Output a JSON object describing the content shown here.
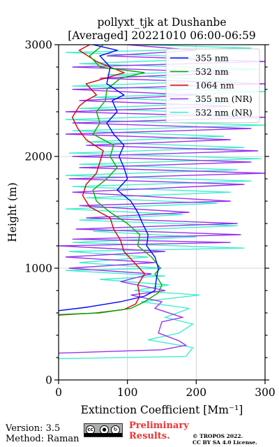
{
  "title_line1": "pollyxt_tjk at Dushanbe",
  "title_line2": "[Averaged] 20221010 06:00-06:59",
  "footer": {
    "version": "Version: 3.5",
    "method": "Method: Raman",
    "prelim_line1": "Preliminary",
    "prelim_line2": "Results.",
    "copyright_line1": "© TROPOS 2022.",
    "copyright_line2": "CC BY SA 4.0 License.",
    "cc_badge_text": "cc"
  },
  "chart_data": {
    "type": "line",
    "xlabel": "Extinction Coefficient [Mm⁻¹]",
    "ylabel": "Height (m)",
    "xlim": [
      0,
      300
    ],
    "ylim": [
      0,
      3000
    ],
    "xticks": [
      0,
      100,
      200,
      300
    ],
    "yticks": [
      0,
      1000,
      2000,
      3000
    ],
    "grid": true,
    "legend_position": "top-right",
    "series": [
      {
        "name": "355 nm",
        "color": "#0000ff",
        "points": [
          [
            0,
            620
          ],
          [
            40,
            650
          ],
          [
            90,
            700
          ],
          [
            125,
            750
          ],
          [
            140,
            800
          ],
          [
            142,
            900
          ],
          [
            145,
            1000
          ],
          [
            140,
            1100
          ],
          [
            128,
            1200
          ],
          [
            130,
            1300
          ],
          [
            122,
            1400
          ],
          [
            115,
            1500
          ],
          [
            105,
            1600
          ],
          [
            85,
            1700
          ],
          [
            100,
            1800
          ],
          [
            95,
            1900
          ],
          [
            88,
            2000
          ],
          [
            95,
            2100
          ],
          [
            80,
            2200
          ],
          [
            70,
            2300
          ],
          [
            85,
            2400
          ],
          [
            78,
            2500
          ],
          [
            95,
            2550
          ],
          [
            70,
            2650
          ],
          [
            75,
            2800
          ],
          [
            60,
            2900
          ],
          [
            85,
            2950
          ],
          [
            50,
            3000
          ]
        ]
      },
      {
        "name": "532 nm",
        "color": "#00aa00",
        "points": [
          [
            0,
            585
          ],
          [
            60,
            600
          ],
          [
            105,
            640
          ],
          [
            125,
            700
          ],
          [
            145,
            780
          ],
          [
            150,
            850
          ],
          [
            140,
            950
          ],
          [
            148,
            1000
          ],
          [
            135,
            1100
          ],
          [
            115,
            1200
          ],
          [
            118,
            1300
          ],
          [
            100,
            1400
          ],
          [
            75,
            1500
          ],
          [
            55,
            1600
          ],
          [
            50,
            1700
          ],
          [
            70,
            1800
          ],
          [
            85,
            1900
          ],
          [
            75,
            2000
          ],
          [
            80,
            2100
          ],
          [
            50,
            2200
          ],
          [
            60,
            2300
          ],
          [
            55,
            2400
          ],
          [
            68,
            2500
          ],
          [
            70,
            2600
          ],
          [
            90,
            2700
          ],
          [
            125,
            2750
          ],
          [
            60,
            2800
          ],
          [
            45,
            2900
          ],
          [
            65,
            3000
          ]
        ]
      },
      {
        "name": "1064 nm",
        "color": "#dd0000",
        "points": [
          [
            0,
            580
          ],
          [
            55,
            600
          ],
          [
            95,
            630
          ],
          [
            112,
            680
          ],
          [
            118,
            750
          ],
          [
            115,
            850
          ],
          [
            125,
            950
          ],
          [
            110,
            1050
          ],
          [
            95,
            1150
          ],
          [
            90,
            1250
          ],
          [
            80,
            1350
          ],
          [
            75,
            1450
          ],
          [
            45,
            1550
          ],
          [
            35,
            1650
          ],
          [
            40,
            1750
          ],
          [
            55,
            1850
          ],
          [
            60,
            1950
          ],
          [
            65,
            2050
          ],
          [
            40,
            2150
          ],
          [
            28,
            2250
          ],
          [
            20,
            2350
          ],
          [
            30,
            2450
          ],
          [
            40,
            2500
          ],
          [
            55,
            2550
          ],
          [
            40,
            2650
          ],
          [
            95,
            2750
          ],
          [
            55,
            2850
          ],
          [
            30,
            2950
          ],
          [
            45,
            3000
          ]
        ]
      },
      {
        "name": "355 nm (NR)",
        "color": "#9933ee",
        "points": [
          [
            0,
            240
          ],
          [
            150,
            270
          ],
          [
            185,
            310
          ],
          [
            175,
            350
          ],
          [
            145,
            420
          ],
          [
            150,
            520
          ],
          [
            180,
            560
          ],
          [
            140,
            640
          ],
          [
            150,
            700
          ],
          [
            105,
            760
          ],
          [
            155,
            800
          ],
          [
            90,
            880
          ],
          [
            135,
            950
          ],
          [
            15,
            1000
          ],
          [
            140,
            1050
          ],
          [
            10,
            1100
          ],
          [
            155,
            1150
          ],
          [
            0,
            1200
          ],
          [
            250,
            1230
          ],
          [
            20,
            1260
          ],
          [
            265,
            1300
          ],
          [
            25,
            1350
          ],
          [
            260,
            1400
          ],
          [
            40,
            1450
          ],
          [
            190,
            1500
          ],
          [
            30,
            1560
          ],
          [
            250,
            1600
          ],
          [
            20,
            1680
          ],
          [
            270,
            1750
          ],
          [
            15,
            1800
          ],
          [
            300,
            1850
          ],
          [
            30,
            1900
          ],
          [
            280,
            1950
          ],
          [
            20,
            2000
          ],
          [
            290,
            2050
          ],
          [
            40,
            2100
          ],
          [
            250,
            2150
          ],
          [
            10,
            2200
          ],
          [
            280,
            2250
          ],
          [
            20,
            2300
          ],
          [
            300,
            2350
          ],
          [
            10,
            2400
          ],
          [
            250,
            2450
          ],
          [
            30,
            2500
          ],
          [
            200,
            2550
          ],
          [
            20,
            2600
          ],
          [
            300,
            2650
          ],
          [
            60,
            2700
          ],
          [
            250,
            2750
          ],
          [
            20,
            2800
          ],
          [
            300,
            2850
          ],
          [
            70,
            2900
          ],
          [
            200,
            2950
          ],
          [
            100,
            3000
          ]
        ]
      },
      {
        "name": "532 nm (NR)",
        "color": "#40eecc",
        "points": [
          [
            0,
            190
          ],
          [
            185,
            210
          ],
          [
            195,
            290
          ],
          [
            130,
            360
          ],
          [
            175,
            420
          ],
          [
            195,
            500
          ],
          [
            155,
            560
          ],
          [
            190,
            640
          ],
          [
            120,
            700
          ],
          [
            205,
            760
          ],
          [
            110,
            800
          ],
          [
            160,
            850
          ],
          [
            60,
            900
          ],
          [
            155,
            930
          ],
          [
            10,
            980
          ],
          [
            150,
            1000
          ],
          [
            30,
            1050
          ],
          [
            130,
            1100
          ],
          [
            15,
            1150
          ],
          [
            270,
            1180
          ],
          [
            20,
            1230
          ],
          [
            200,
            1280
          ],
          [
            50,
            1330
          ],
          [
            260,
            1380
          ],
          [
            30,
            1430
          ],
          [
            180,
            1480
          ],
          [
            10,
            1530
          ],
          [
            230,
            1580
          ],
          [
            40,
            1630
          ],
          [
            250,
            1680
          ],
          [
            20,
            1730
          ],
          [
            280,
            1780
          ],
          [
            10,
            1830
          ],
          [
            260,
            1880
          ],
          [
            30,
            1930
          ],
          [
            295,
            1980
          ],
          [
            15,
            2030
          ],
          [
            270,
            2080
          ],
          [
            40,
            2130
          ],
          [
            240,
            2180
          ],
          [
            20,
            2230
          ],
          [
            300,
            2280
          ],
          [
            10,
            2330
          ],
          [
            280,
            2380
          ],
          [
            30,
            2430
          ],
          [
            250,
            2480
          ],
          [
            50,
            2530
          ],
          [
            300,
            2580
          ],
          [
            20,
            2630
          ],
          [
            260,
            2680
          ],
          [
            70,
            2730
          ],
          [
            290,
            2780
          ],
          [
            30,
            2830
          ],
          [
            250,
            2880
          ],
          [
            10,
            2930
          ],
          [
            280,
            2970
          ],
          [
            120,
            3000
          ]
        ]
      }
    ]
  }
}
